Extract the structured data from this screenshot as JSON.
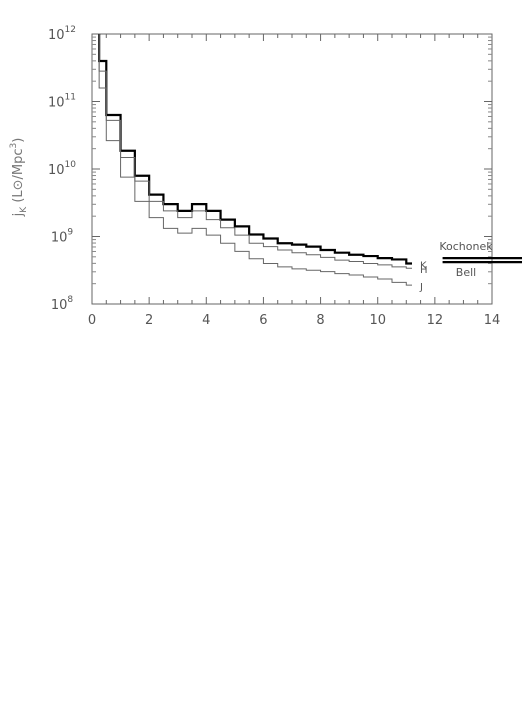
{
  "chart_data": {
    "type": "line",
    "title": "",
    "xlabel": "",
    "ylabel": {
      "main": "j",
      "sub": "K",
      "unit_open": " (L",
      "unit_sym": "⊙",
      "unit_mid": "/Mpc",
      "unit_sup": "3",
      "unit_close": ")"
    },
    "xlim": [
      0,
      14
    ],
    "ylim_log10": [
      8,
      12
    ],
    "yscale": "log",
    "grid": false,
    "xticks": [
      {
        "value": 0,
        "label": "0"
      },
      {
        "value": 2,
        "label": "2"
      },
      {
        "value": 4,
        "label": "4"
      },
      {
        "value": 6,
        "label": "6"
      },
      {
        "value": 8,
        "label": "8"
      },
      {
        "value": 10,
        "label": "10"
      },
      {
        "value": 12,
        "label": "12"
      },
      {
        "value": 14,
        "label": "14"
      }
    ],
    "yticks": [
      {
        "value": 8,
        "base": "10",
        "exp": "8"
      },
      {
        "value": 9,
        "base": "10",
        "exp": "9"
      },
      {
        "value": 10,
        "base": "10",
        "exp": "10"
      },
      {
        "value": 11,
        "base": "10",
        "exp": "11"
      },
      {
        "value": 12,
        "base": "10",
        "exp": "12"
      }
    ],
    "bin_edges": [
      0.25,
      0.5,
      1.0,
      1.5,
      2.0,
      2.5,
      3.0,
      3.5,
      4.0,
      4.5,
      5.0,
      5.5,
      6.0,
      6.5,
      7.0,
      7.5,
      8.0,
      8.5,
      9.0,
      9.5,
      10.0,
      10.5,
      11.0,
      11.2
    ],
    "series": [
      {
        "name": "K",
        "color": "#000000",
        "weight": "thick",
        "log10_values": [
          11.6,
          10.8,
          10.27,
          9.9,
          9.62,
          9.48,
          9.38,
          9.48,
          9.38,
          9.25,
          9.15,
          9.03,
          8.97,
          8.9,
          8.88,
          8.85,
          8.8,
          8.76,
          8.73,
          8.71,
          8.68,
          8.66,
          8.6
        ]
      },
      {
        "name": "H",
        "color": "#666666",
        "weight": "thin",
        "log10_values": [
          11.45,
          10.72,
          10.17,
          9.82,
          9.52,
          9.38,
          9.28,
          9.38,
          9.25,
          9.13,
          9.02,
          8.9,
          8.85,
          8.8,
          8.76,
          8.73,
          8.69,
          8.65,
          8.63,
          8.6,
          8.58,
          8.55,
          8.53
        ]
      },
      {
        "name": "J",
        "color": "#666666",
        "weight": "thin",
        "log10_values": [
          11.2,
          10.42,
          9.88,
          9.52,
          9.28,
          9.12,
          9.05,
          9.12,
          9.02,
          8.9,
          8.78,
          8.67,
          8.6,
          8.55,
          8.52,
          8.5,
          8.48,
          8.45,
          8.43,
          8.4,
          8.37,
          8.32,
          8.28
        ]
      }
    ],
    "reference_lines": [
      {
        "name": "Kochonek",
        "log10_value": 8.68,
        "x_range": [
          12.2,
          14
        ]
      },
      {
        "name": "Bell",
        "log10_value": 8.62,
        "x_range": [
          12.2,
          14
        ]
      }
    ]
  }
}
